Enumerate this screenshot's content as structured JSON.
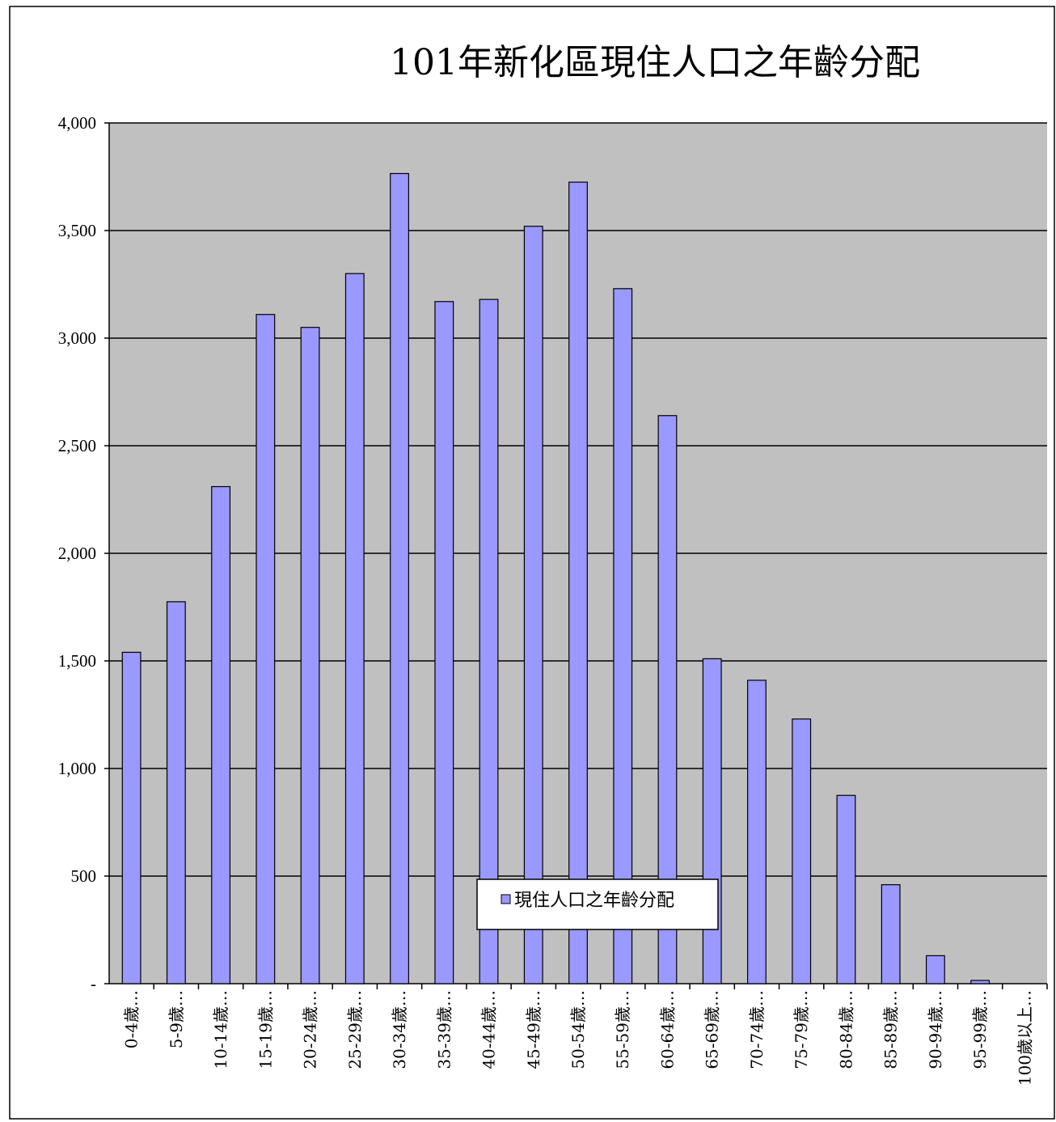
{
  "chart_data": {
    "type": "bar",
    "title": "101年新化區現住人口之年齡分配",
    "xlabel": "",
    "ylabel": "",
    "categories": [
      "0-4歲",
      "5-9歲",
      "10-14歲",
      "15-19歲",
      "20-24歲",
      "25-29歲",
      "30-34歲",
      "35-39歲",
      "40-44歲",
      "45-49歲",
      "50-54歲",
      "55-59歲",
      "60-64歲",
      "65-69歲",
      "70-74歲",
      "75-79歲",
      "80-84歲",
      "85-89歲",
      "90-94歲",
      "95-99歲",
      "100歲以上"
    ],
    "category_labels_shown": [
      "0-4歲…",
      "5-9歲…",
      "10-14歲…",
      "15-19歲…",
      "20-24歲…",
      "25-29歲…",
      "30-34歲…",
      "35-39歲…",
      "40-44歲…",
      "45-49歲…",
      "50-54歲…",
      "55-59歲…",
      "60-64歲…",
      "65-69歲…",
      "70-74歲…",
      "75-79歲…",
      "80-84歲…",
      "85-89歲…",
      "90-94歲…",
      "95-99歲…",
      "100歲以上…"
    ],
    "series": [
      {
        "name": "現住人口之年齡分配",
        "color": "#9999ff",
        "values": [
          1540,
          1775,
          2310,
          3110,
          3050,
          3300,
          3765,
          3170,
          3180,
          3520,
          3725,
          3230,
          2640,
          1510,
          1410,
          1230,
          875,
          460,
          130,
          15,
          0
        ]
      }
    ],
    "ylim": [
      0,
      4000
    ],
    "yticks": [
      0,
      500,
      1000,
      1500,
      2000,
      2500,
      3000,
      3500,
      4000
    ],
    "ytick_labels": [
      "-",
      "500",
      "1,000",
      "1,500",
      "2,000",
      "2,500",
      "3,000",
      "3,500",
      "4,000"
    ],
    "grid": true,
    "plot_background": "#c0c0c0",
    "legend": {
      "position": "bottom",
      "label": "現住人口之年齡分配",
      "marker": "□"
    }
  }
}
